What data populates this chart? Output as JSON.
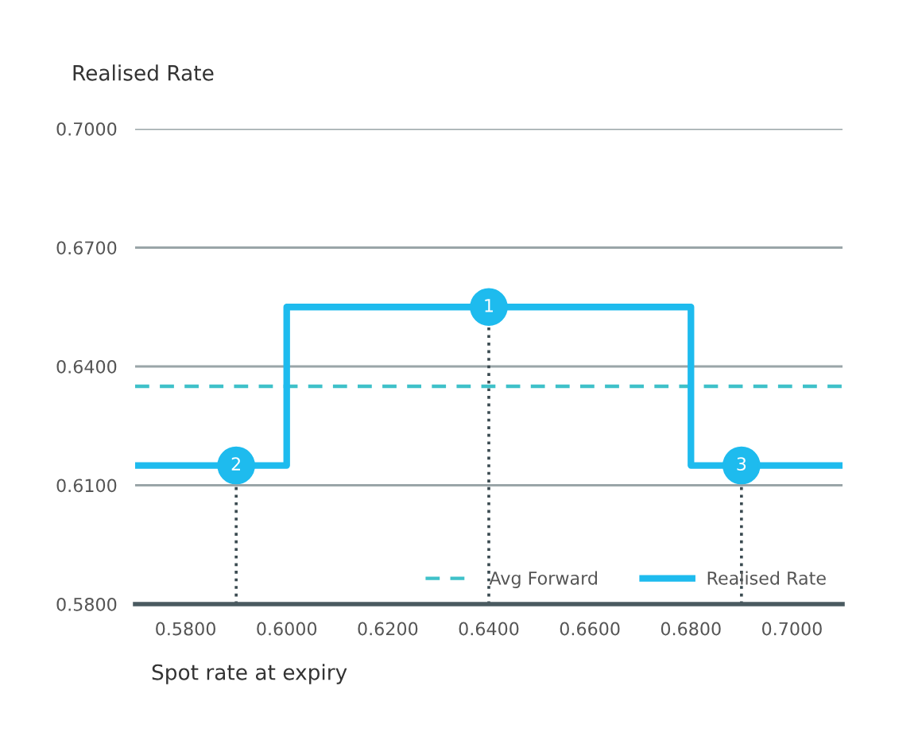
{
  "chart_data": {
    "type": "step",
    "xlabel": "Spot rate at expiry",
    "ylabel": "Realised Rate",
    "series": [
      {
        "name": "Avg Forward",
        "type": "line",
        "color": "#3fc1c9",
        "line_style": "dashed",
        "x": [
          0.57,
          0.71
        ],
        "values": [
          0.635,
          0.635
        ]
      },
      {
        "name": "Realised Rate",
        "color": "#1ebbee",
        "line_style": "solid",
        "x": [
          0.57,
          0.6,
          0.68,
          0.71
        ],
        "values": [
          0.615,
          0.655,
          0.615,
          0.615
        ]
      }
    ],
    "annotations": [
      {
        "text": "1",
        "x": 0.64,
        "y": 0.655
      },
      {
        "text": "2",
        "x": 0.59,
        "y": 0.615
      },
      {
        "text": "3",
        "x": 0.69,
        "y": 0.615
      }
    ],
    "xlim": [
      0.57,
      0.71
    ],
    "ylim": [
      0.58,
      0.7
    ],
    "xticks": [
      {
        "value": 0.58,
        "label": "0.5800"
      },
      {
        "value": 0.6,
        "label": "0.6000"
      },
      {
        "value": 0.62,
        "label": "0.6200"
      },
      {
        "value": 0.64,
        "label": "0.6400"
      },
      {
        "value": 0.66,
        "label": "0.6600"
      },
      {
        "value": 0.68,
        "label": "0.6800"
      },
      {
        "value": 0.7,
        "label": "0.7000"
      }
    ],
    "yticks": [
      {
        "value": 0.58,
        "label": "0.5800"
      },
      {
        "value": 0.61,
        "label": "0.6100"
      },
      {
        "value": 0.64,
        "label": "0.6400"
      },
      {
        "value": 0.67,
        "label": "0.6700"
      },
      {
        "value": 0.7,
        "label": "0.7000"
      }
    ],
    "grid": "y",
    "legend": "bottom right",
    "marker": "none"
  }
}
